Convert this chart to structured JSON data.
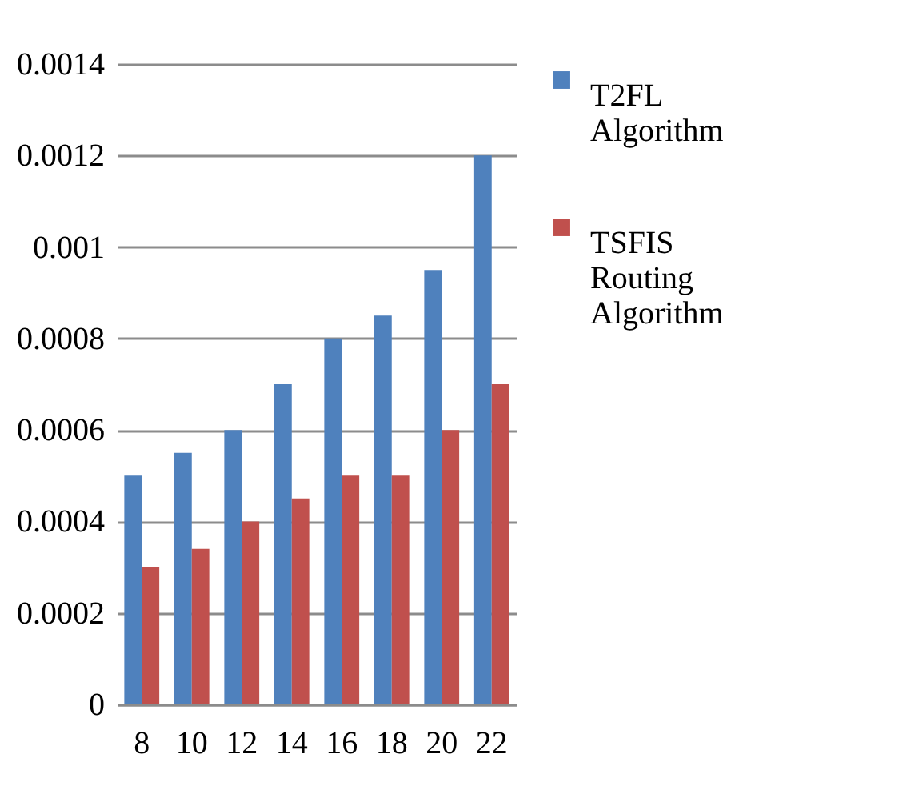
{
  "chart_data": {
    "type": "bar",
    "categories": [
      "8",
      "10",
      "12",
      "14",
      "16",
      "18",
      "20",
      "22"
    ],
    "series": [
      {
        "name": "T2FL Algorithm",
        "color": "#4f81bd",
        "values": [
          0.0005,
          0.00055,
          0.0006,
          0.0007,
          0.0008,
          0.00085,
          0.00095,
          0.0012
        ]
      },
      {
        "name": "TSFIS Routing Algorithm",
        "color": "#c0504d",
        "values": [
          0.0003,
          0.00034,
          0.0004,
          0.00045,
          0.0005,
          0.0005,
          0.0006,
          0.0007
        ]
      }
    ],
    "ylim": [
      0,
      0.0014
    ],
    "yticks": [
      0,
      0.0002,
      0.0004,
      0.0006,
      0.0008,
      0.001,
      0.0012,
      0.0014
    ],
    "grid": "y",
    "legend": "right"
  }
}
